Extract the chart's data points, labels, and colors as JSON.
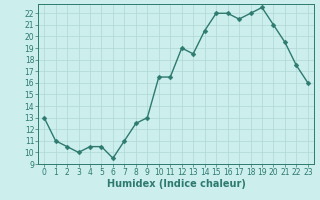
{
  "x": [
    0,
    1,
    2,
    3,
    4,
    5,
    6,
    7,
    8,
    9,
    10,
    11,
    12,
    13,
    14,
    15,
    16,
    17,
    18,
    19,
    20,
    21,
    22,
    23
  ],
  "y": [
    13,
    11,
    10.5,
    10,
    10.5,
    10.5,
    9.5,
    11,
    12.5,
    13,
    16.5,
    16.5,
    19,
    18.5,
    20.5,
    22,
    22,
    21.5,
    22,
    22.5,
    21,
    19.5,
    17.5,
    16
  ],
  "line_color": "#2d7a6e",
  "marker_color": "#2d7a6e",
  "bg_color": "#cceeed",
  "grid_color": "#b0d8d5",
  "xlabel": "Humidex (Indice chaleur)",
  "xlim": [
    -0.5,
    23.5
  ],
  "ylim": [
    9,
    22.8
  ],
  "yticks": [
    9,
    10,
    11,
    12,
    13,
    14,
    15,
    16,
    17,
    18,
    19,
    20,
    21,
    22
  ],
  "xticks": [
    0,
    1,
    2,
    3,
    4,
    5,
    6,
    7,
    8,
    9,
    10,
    11,
    12,
    13,
    14,
    15,
    16,
    17,
    18,
    19,
    20,
    21,
    22,
    23
  ],
  "tick_fontsize": 5.5,
  "xlabel_fontsize": 7,
  "line_width": 1.0,
  "marker_size": 2.5
}
